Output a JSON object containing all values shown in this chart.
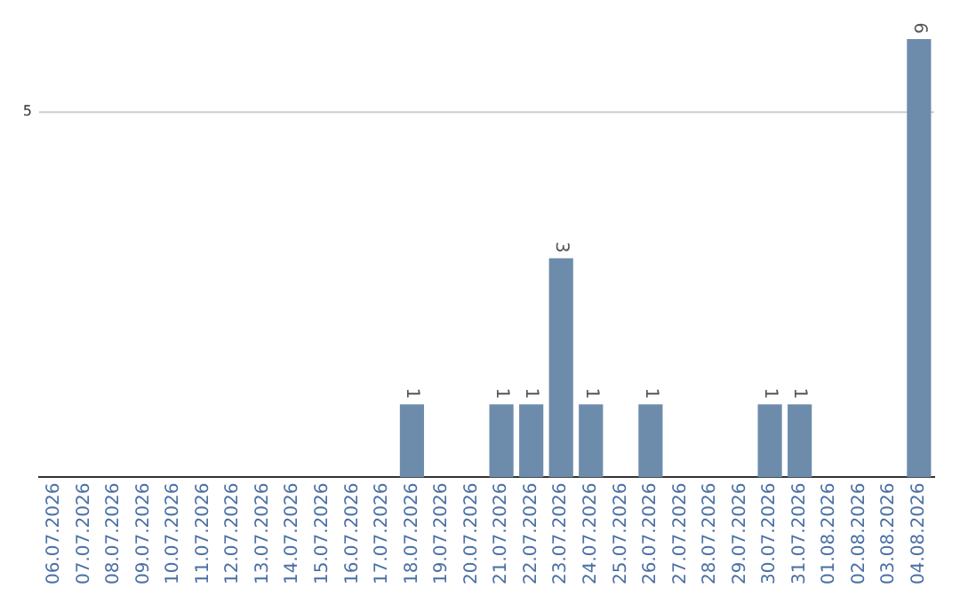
{
  "chart_data": {
    "type": "bar",
    "categories": [
      "06.07.2026",
      "07.07.2026",
      "08.07.2026",
      "09.07.2026",
      "10.07.2026",
      "11.07.2026",
      "12.07.2026",
      "13.07.2026",
      "14.07.2026",
      "15.07.2026",
      "16.07.2026",
      "17.07.2026",
      "18.07.2026",
      "19.07.2026",
      "20.07.2026",
      "21.07.2026",
      "22.07.2026",
      "23.07.2026",
      "24.07.2026",
      "25.07.2026",
      "26.07.2026",
      "27.07.2026",
      "28.07.2026",
      "29.07.2026",
      "30.07.2026",
      "31.07.2026",
      "01.08.2026",
      "02.08.2026",
      "03.08.2026",
      "04.08.2026"
    ],
    "values": [
      null,
      null,
      null,
      null,
      null,
      null,
      null,
      null,
      null,
      null,
      null,
      null,
      1,
      null,
      null,
      1,
      1,
      3,
      1,
      null,
      1,
      null,
      null,
      null,
      1,
      1,
      null,
      null,
      null,
      6
    ],
    "value_labels": [
      null,
      null,
      null,
      null,
      null,
      null,
      null,
      null,
      null,
      null,
      null,
      null,
      "1",
      null,
      null,
      "1",
      "1",
      "3",
      "1",
      null,
      "1",
      null,
      null,
      null,
      "1",
      "1",
      null,
      null,
      null,
      "6"
    ],
    "color": "#6d8cab",
    "ylim": [
      0,
      6
    ],
    "ref_lines": [
      {
        "axis": "y",
        "value": 5,
        "label": "5",
        "color": "#cccccc"
      }
    ],
    "legend": false
  }
}
